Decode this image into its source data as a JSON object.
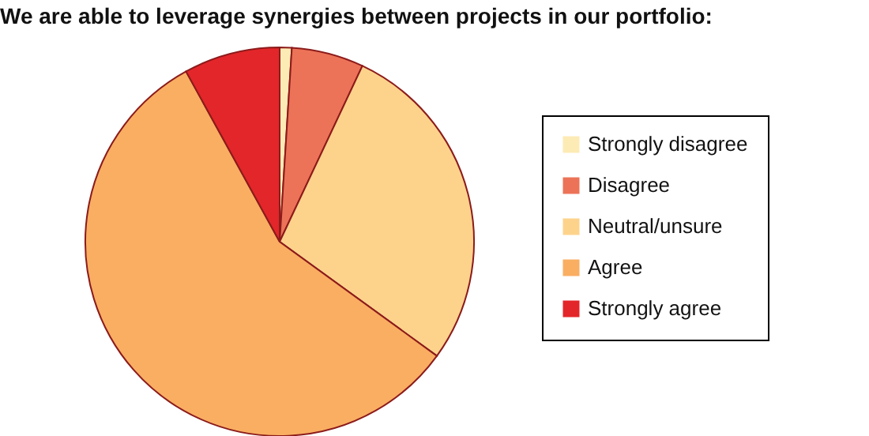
{
  "chart_data": {
    "type": "pie",
    "title": "We are able to leverage synergies between projects in our portfolio:",
    "categories": [
      "Strongly disagree",
      "Disagree",
      "Neutral/unsure",
      "Agree",
      "Strongly agree"
    ],
    "values": [
      1,
      6,
      28,
      57,
      8
    ],
    "colors": [
      "#fdebb5",
      "#ec7357",
      "#fdd38c",
      "#f9ae62",
      "#e3262a"
    ],
    "legend": "right"
  }
}
